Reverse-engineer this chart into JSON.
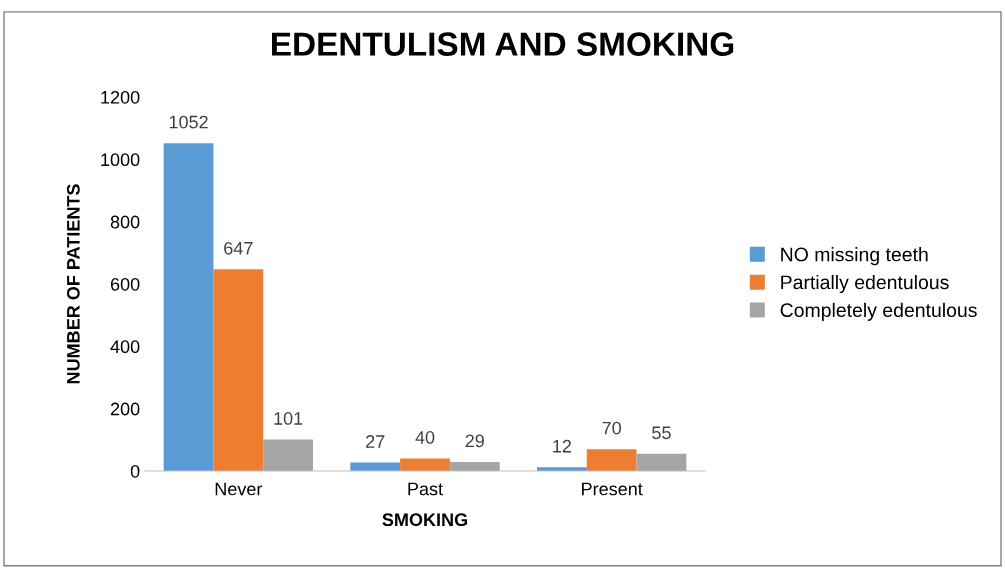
{
  "chart_data": {
    "type": "bar",
    "title": "EDENTULISM AND SMOKING",
    "xlabel": "SMOKING",
    "ylabel": "NUMBER OF PATIENTS",
    "categories": [
      "Never",
      "Past",
      "Present"
    ],
    "series": [
      {
        "name": "NO missing teeth",
        "color": "#5b9bd5",
        "values": [
          1052,
          27,
          12
        ]
      },
      {
        "name": "Partially edentulous",
        "color": "#ed7d31",
        "values": [
          647,
          40,
          70
        ]
      },
      {
        "name": "Completely edentulous",
        "color": "#a5a5a5",
        "values": [
          101,
          29,
          55
        ]
      }
    ],
    "ylim": [
      0,
      1200
    ],
    "yticks": [
      0,
      200,
      400,
      600,
      800,
      1000,
      1200
    ],
    "data_labels": true,
    "legend": "right",
    "grid": false
  }
}
